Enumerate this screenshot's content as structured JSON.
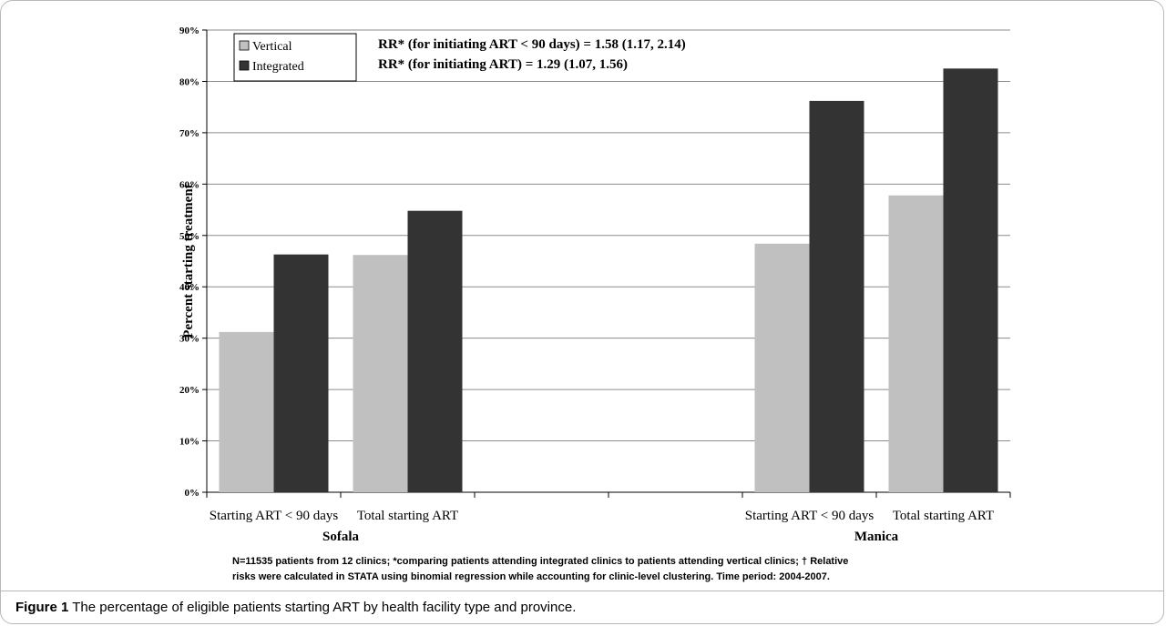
{
  "chart_data": {
    "type": "bar",
    "ylabel": "Percent starting treatment",
    "ylim": [
      0,
      90
    ],
    "yticks": [
      "0%",
      "10%",
      "20%",
      "30%",
      "40%",
      "50%",
      "60%",
      "70%",
      "80%",
      "90%"
    ],
    "groups": [
      {
        "name": "Sofala",
        "categories": [
          "Starting ART < 90 days",
          "Total starting ART"
        ]
      },
      {
        "name": "Manica",
        "categories": [
          "Starting ART < 90 days",
          "Total starting ART"
        ]
      }
    ],
    "categories": [
      "Starting ART < 90 days",
      "Total starting ART",
      "Starting ART < 90 days",
      "Total starting ART"
    ],
    "series": [
      {
        "name": "Vertical",
        "color": "#c0c0c0",
        "values": [
          31.2,
          46.2,
          48.4,
          57.8
        ]
      },
      {
        "name": "Integrated",
        "color": "#333333",
        "values": [
          46.3,
          54.8,
          76.2,
          82.5
        ]
      }
    ],
    "legend": "top-left",
    "annotations": [
      "RR* (for initiating ART < 90 days) = 1.58 (1.17, 2.14)",
      "RR* (for initiating ART) = 1.29 (1.07, 1.56)"
    ],
    "grid": true
  },
  "footnote": {
    "line1": "N=11535 patients from 12 clinics; *comparing patients attending integrated clinics to patients attending vertical clinics; † Relative",
    "line2": "risks were calculated in STATA using binomial regression while accounting for clinic-level clustering. Time period: 2004-2007."
  },
  "caption": {
    "label": "Figure 1",
    "text": " The percentage of eligible patients starting ART by health facility type and province."
  }
}
